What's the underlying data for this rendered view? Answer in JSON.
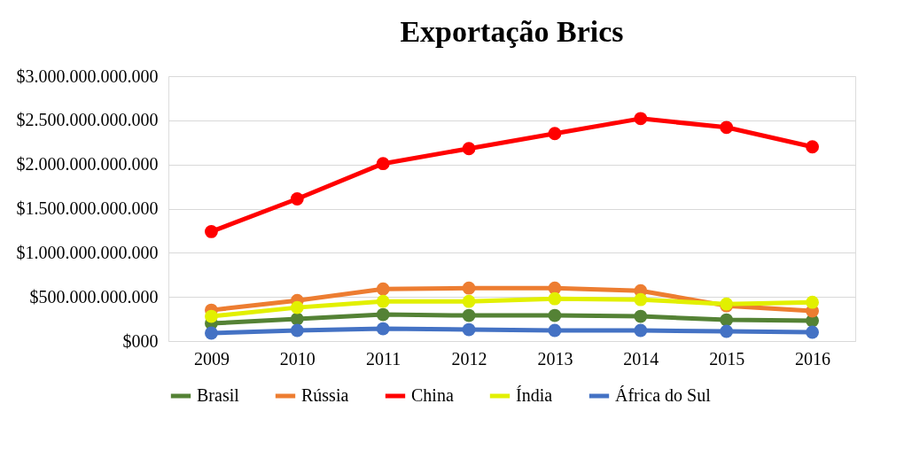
{
  "chart_data": {
    "type": "line",
    "title": "Exportação Brics",
    "categories": [
      "2009",
      "2010",
      "2011",
      "2012",
      "2013",
      "2014",
      "2015",
      "2016"
    ],
    "series": [
      {
        "name": "Brasil",
        "color": "#548235",
        "values": [
          200000000000,
          250000000000,
          300000000000,
          290000000000,
          290000000000,
          280000000000,
          240000000000,
          230000000000
        ]
      },
      {
        "name": "Rússia",
        "color": "#ed7d31",
        "values": [
          350000000000,
          460000000000,
          590000000000,
          600000000000,
          600000000000,
          570000000000,
          400000000000,
          340000000000
        ]
      },
      {
        "name": "China",
        "color": "#ff0000",
        "values": [
          1240000000000,
          1610000000000,
          2010000000000,
          2180000000000,
          2350000000000,
          2520000000000,
          2420000000000,
          2200000000000
        ]
      },
      {
        "name": "Índia",
        "color": "#e2f000",
        "values": [
          280000000000,
          380000000000,
          450000000000,
          450000000000,
          480000000000,
          470000000000,
          420000000000,
          440000000000
        ]
      },
      {
        "name": "África do Sul",
        "color": "#4472c4",
        "values": [
          90000000000,
          120000000000,
          140000000000,
          130000000000,
          120000000000,
          120000000000,
          110000000000,
          100000000000
        ]
      }
    ],
    "ylim": [
      0,
      3000000000000
    ],
    "yticks": [
      {
        "value": 0,
        "label": "$000"
      },
      {
        "value": 500000000000,
        "label": "$500.000.000.000"
      },
      {
        "value": 1000000000000,
        "label": "$1.000.000.000.000"
      },
      {
        "value": 1500000000000,
        "label": "$1.500.000.000.000"
      },
      {
        "value": 2000000000000,
        "label": "$2.000.000.000.000"
      },
      {
        "value": 2500000000000,
        "label": "$2.500.000.000.000"
      },
      {
        "value": 3000000000000,
        "label": "$3.000.000.000.000"
      }
    ],
    "grid": "y",
    "legend": "bottom",
    "marker": "circle",
    "line_style": "solid"
  }
}
